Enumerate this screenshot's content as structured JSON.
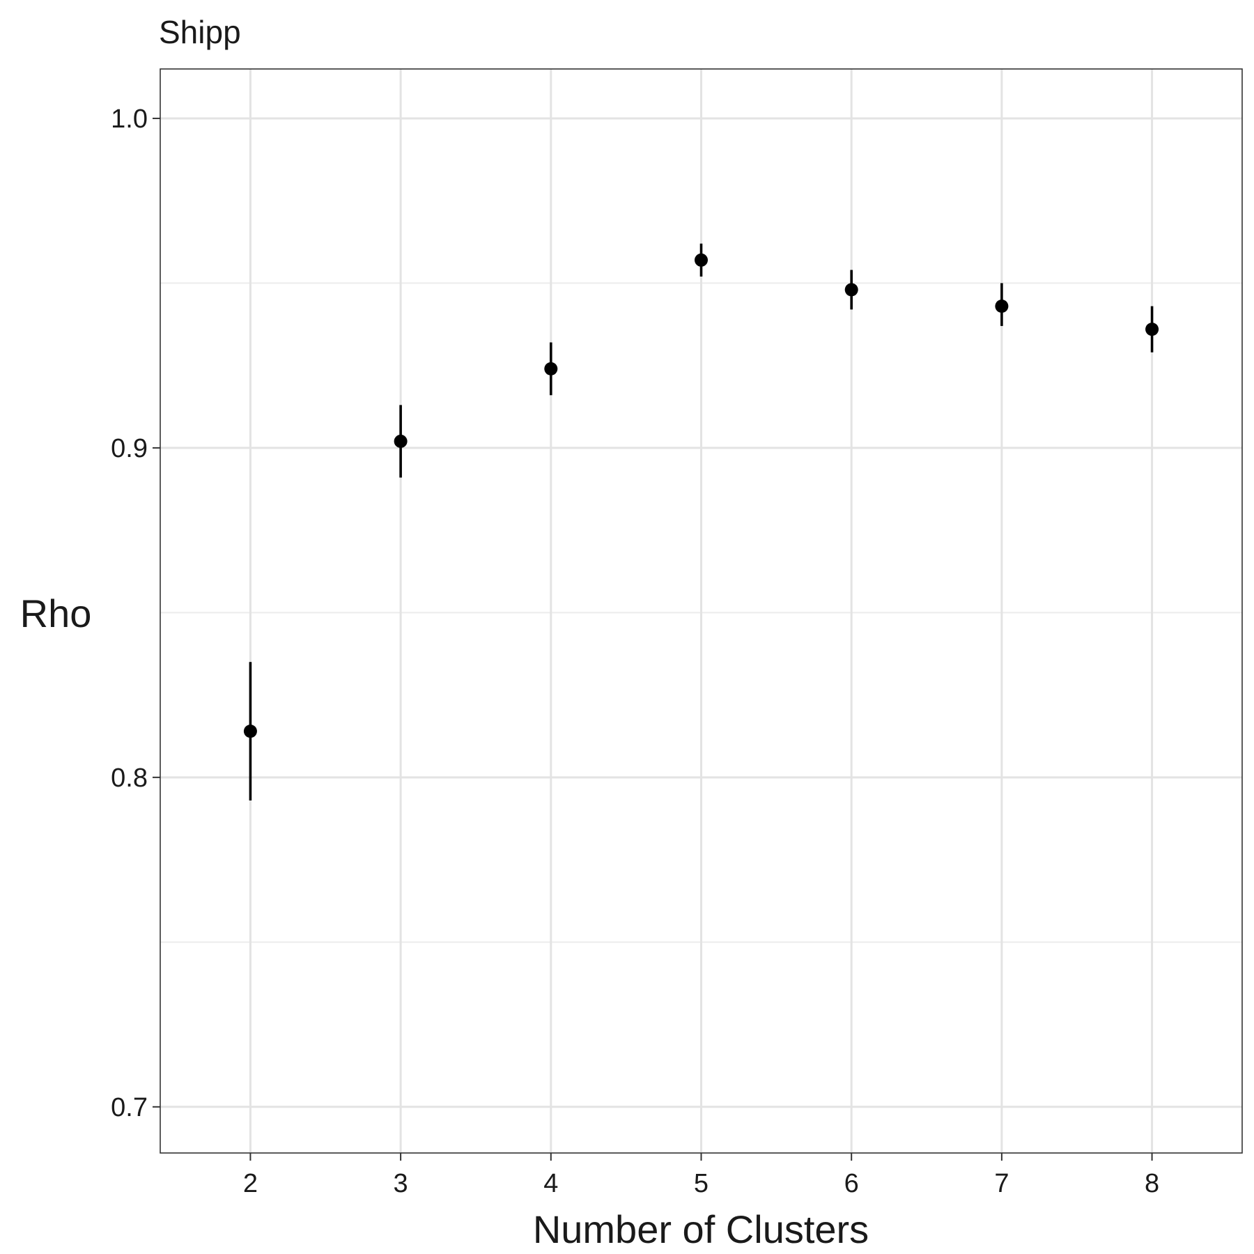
{
  "chart_data": {
    "type": "scatter",
    "title": "Shipp",
    "xlabel": "Number of Clusters",
    "ylabel": "Rho",
    "x": [
      2,
      3,
      4,
      5,
      6,
      7,
      8
    ],
    "series": [
      {
        "y": [
          0.814,
          0.902,
          0.924,
          0.957,
          0.948,
          0.943,
          0.936
        ],
        "ymin": [
          0.793,
          0.891,
          0.916,
          0.952,
          0.942,
          0.937,
          0.929
        ],
        "ymax": [
          0.835,
          0.913,
          0.932,
          0.962,
          0.954,
          0.95,
          0.943
        ]
      }
    ],
    "xticks": [
      "2",
      "3",
      "4",
      "5",
      "6",
      "7",
      "8"
    ],
    "yticks": [
      "0.7",
      "0.8",
      "0.9",
      "1.0"
    ],
    "xlim": [
      1.4,
      8.6
    ],
    "ylim": [
      0.686,
      1.015
    ],
    "grid": true,
    "legend": "none",
    "colors": {
      "point": "#000000",
      "grid": "#e3e3e3",
      "border": "#333333",
      "text": "#1a1a1a"
    }
  }
}
